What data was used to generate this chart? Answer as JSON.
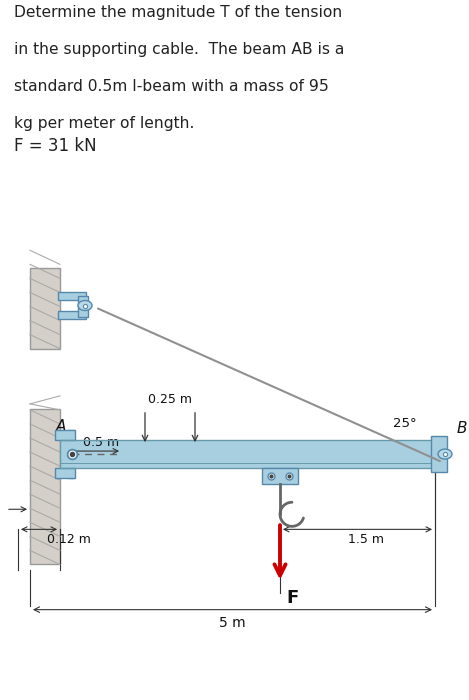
{
  "title_line1": "Determine the magnitude T of the tension",
  "title_line2": "in the supporting cable.  The beam AB is a",
  "title_line3": "standard 0.5m I-beam with a mass of 95",
  "title_line4": "kg per meter of length.",
  "F_label": "F = 31 kN",
  "beam_color": "#a8cfe0",
  "beam_edge": "#6699aa",
  "wall_color": "#d4cfc8",
  "wall_edge": "#999999",
  "cable_color": "#909090",
  "bracket_color": "#a8cfe0",
  "bracket_edge": "#5588aa",
  "arrow_color": "#cc0000",
  "dim_color": "#333333",
  "bg_color": "#ffffff",
  "text_color": "#222222",
  "angle_label": "25°",
  "label_A": "A",
  "label_B": "B",
  "label_F": "F",
  "dim_025": "0.25 m",
  "dim_05": "0.5 m",
  "dim_012": "0.12 m",
  "dim_15": "1.5 m",
  "dim_5": "5 m"
}
